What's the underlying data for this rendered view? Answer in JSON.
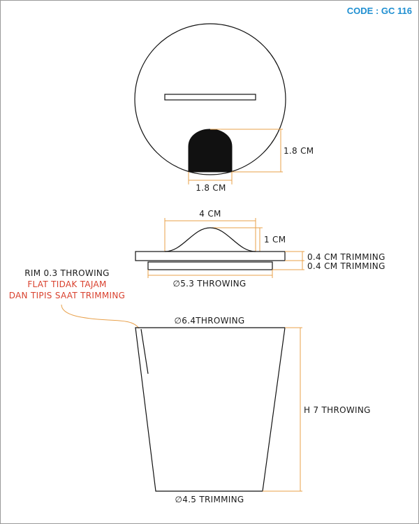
{
  "code_label": "CODE : GC 116",
  "top_view": {
    "height_label": "1.8 CM",
    "width_label": "1.8 CM"
  },
  "lid_view": {
    "knob_width_label": "4 CM",
    "knob_height_label": "1 CM",
    "lid_thickness_label": "0.4 CM TRIMMING",
    "flange_thickness_label": "0.4 CM TRIMMING",
    "flange_diameter_label": "∅5.3 THROWING"
  },
  "rim_note": {
    "line1": "RIM 0.3 THROWING",
    "line2": "FLAT TIDAK TAJAM",
    "line3": "DAN TIPIS SAAT TRIMMING"
  },
  "cup_view": {
    "top_diameter_label": "∅6.4THROWING",
    "height_label": "H 7 THROWING",
    "bottom_diameter_label": "∅4.5 TRIMMING"
  },
  "colors": {
    "dimension_line": "#e8a04a",
    "note_red": "#d9412e",
    "code_blue": "#1f8fd1",
    "outline": "#111111"
  }
}
